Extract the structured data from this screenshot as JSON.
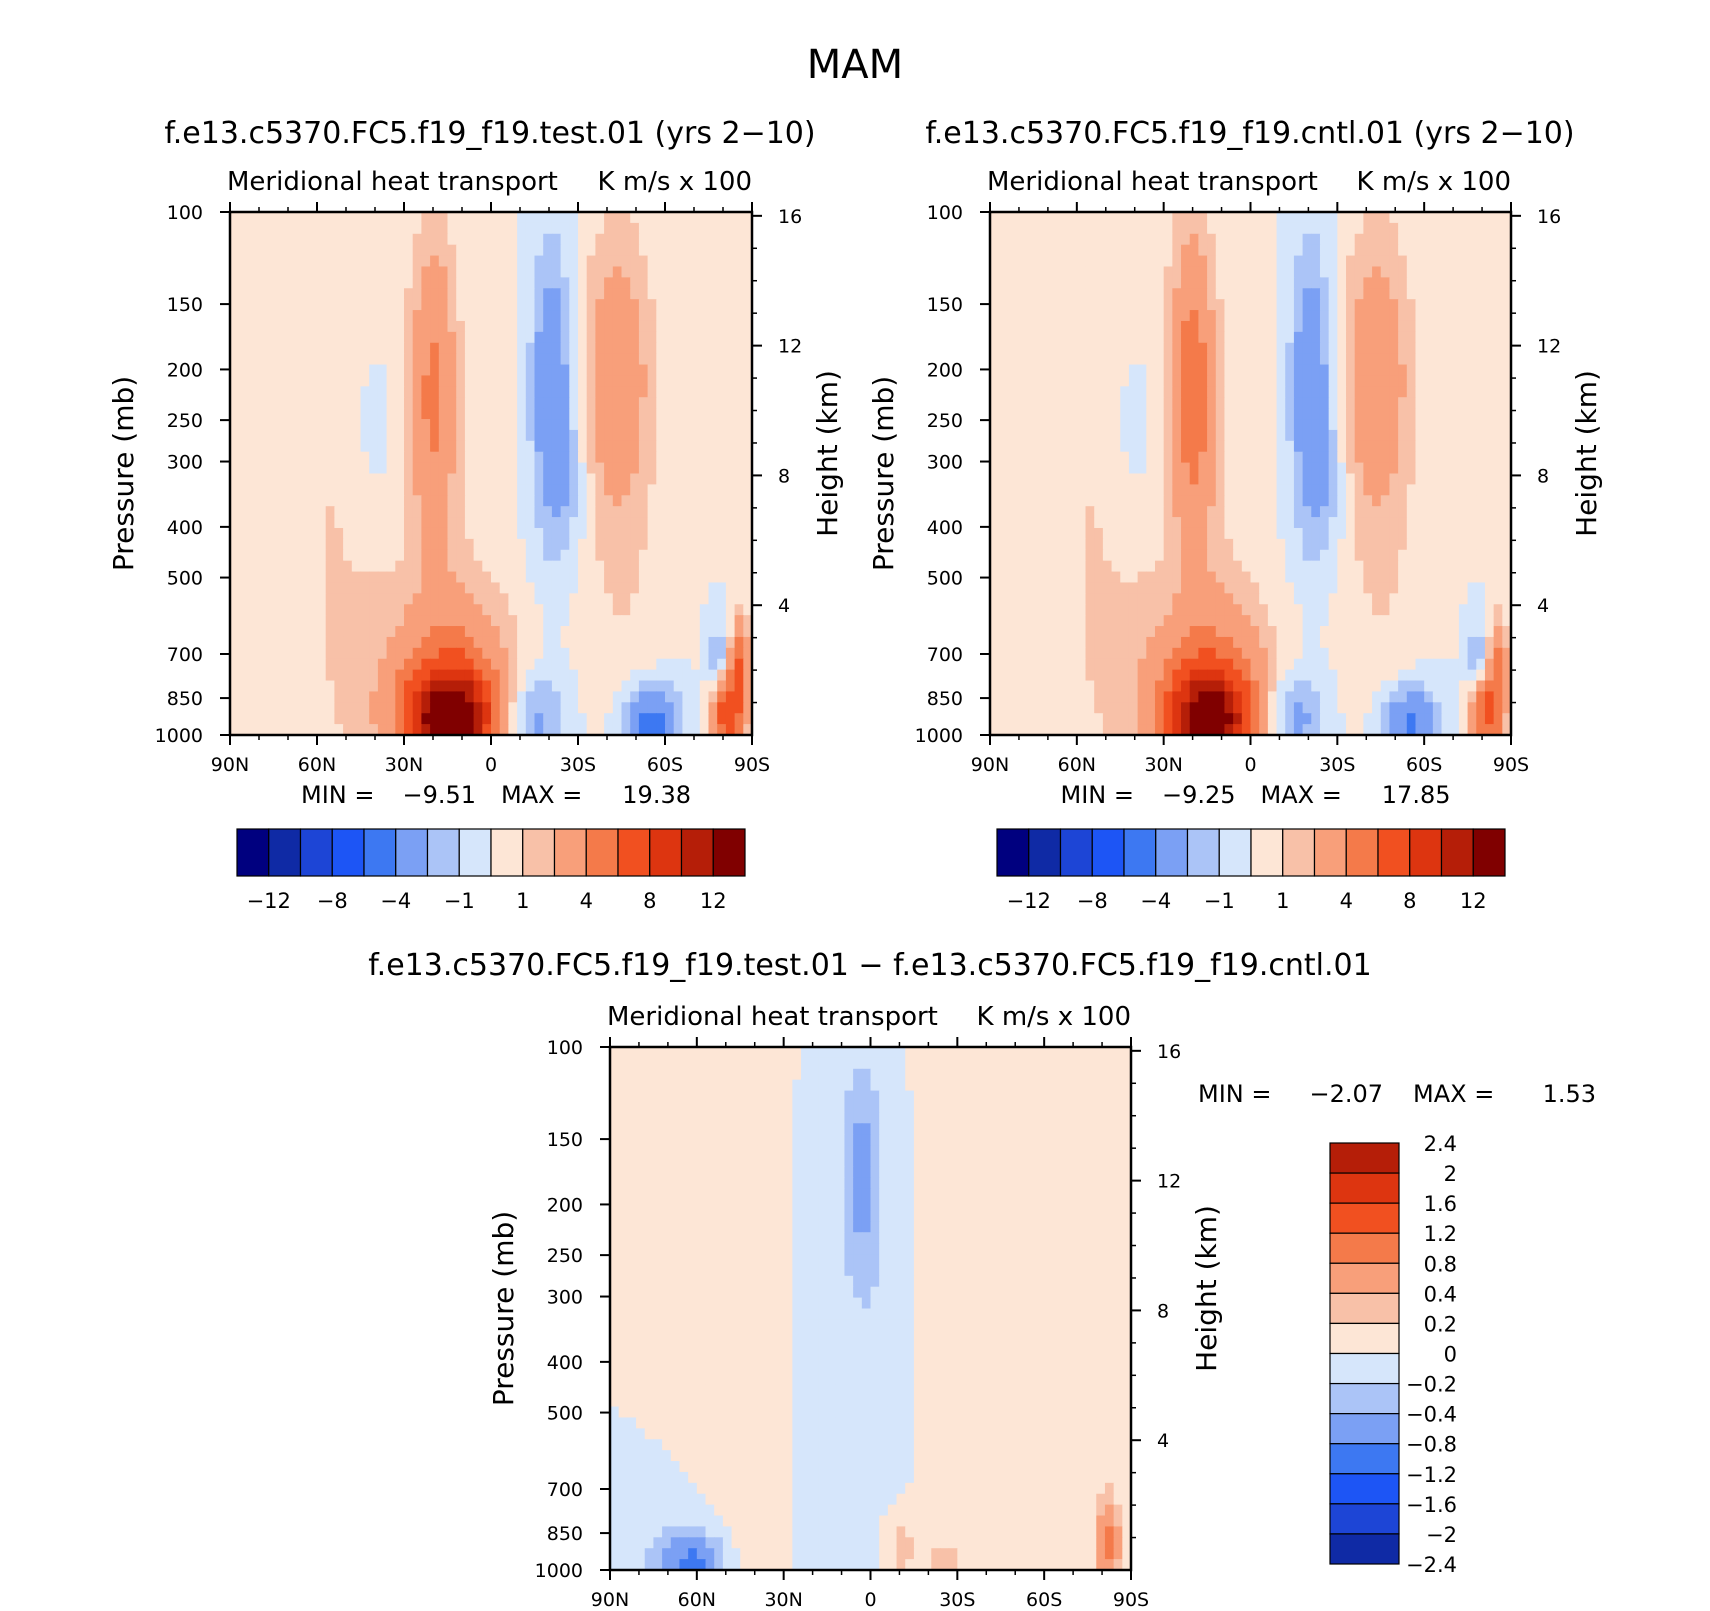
{
  "figure_title": "MAM",
  "colors": {
    "main": [
      "#00007f",
      "#0f2aa5",
      "#1d45d6",
      "#1d55f5",
      "#3d78f2",
      "#7ba0f4",
      "#abc4f7",
      "#d6e6fb",
      "#fde6d6",
      "#f8c1a8",
      "#f89f7a",
      "#f47a4a",
      "#f15020",
      "#dd3510",
      "#b51e08",
      "#800000"
    ],
    "diff": [
      "#00007f",
      "#0f2aa5",
      "#1d45d6",
      "#1d55f5",
      "#3d78f2",
      "#7ba0f4",
      "#abc4f7",
      "#d6e6fb",
      "#fde6d6",
      "#f8c1a8",
      "#f89f7a",
      "#f47a4a",
      "#f15020",
      "#dd3510",
      "#b51e08",
      "#800000"
    ]
  },
  "chart_data": [
    {
      "type": "heatmap",
      "id": "test",
      "case_title": "f.e13.c5370.FC5.f19_f19.test.01 (yrs 2−10)",
      "left_title": "Meridional heat transport",
      "right_title": "K m/s x 100",
      "ylabel": "Pressure (mb)",
      "ylabel_right": "Height (km)",
      "x_ticks": [
        "90N",
        "60N",
        "30N",
        "0",
        "30S",
        "60S",
        "90S"
      ],
      "x_values": [
        90,
        60,
        30,
        0,
        -30,
        -60,
        -90
      ],
      "y_ticks": [
        "100",
        "150",
        "200",
        "250",
        "300",
        "400",
        "500",
        "700",
        "850",
        "1000"
      ],
      "y_values": [
        100,
        150,
        200,
        250,
        300,
        400,
        500,
        700,
        850,
        1000
      ],
      "height_ticks": [
        "16",
        "12",
        "8",
        "4"
      ],
      "height_values": [
        16,
        12,
        8,
        4
      ],
      "min_label": "MIN =",
      "min": "−9.51",
      "max_label": "MAX =",
      "max": "19.38",
      "levels": [
        -14,
        -12,
        -10,
        -8,
        -6,
        -4,
        -2,
        -1,
        0,
        1,
        2,
        4,
        6,
        8,
        10,
        12,
        14
      ],
      "colorbar_labels": [
        "−12",
        "−8",
        "−4",
        "−1",
        "1",
        "4",
        "8",
        "12"
      ],
      "colorbar_label_values": [
        -12,
        -8,
        -4,
        -1,
        1,
        4,
        8,
        12
      ],
      "features": [
        {
          "lat": 14,
          "p": 950,
          "value": 12,
          "wlat": 11,
          "wp": 110
        },
        {
          "lat": 14,
          "p": 780,
          "value": 4,
          "wlat": 15,
          "wp": 170
        },
        {
          "lat": -14,
          "p": 935,
          "value": -3,
          "wlat": 8,
          "wp": 90
        },
        {
          "lat": -55,
          "p": 960,
          "value": -5,
          "wlat": 7,
          "wp": 70
        },
        {
          "lat": -43,
          "p": 200,
          "value": 2.5,
          "wlat": 8,
          "wp": 70
        },
        {
          "lat": -45,
          "p": 320,
          "value": 1.2,
          "wlat": 10,
          "wp": 260
        },
        {
          "lat": -21,
          "p": 220,
          "value": -3.5,
          "wlat": 5,
          "wp": 90
        },
        {
          "lat": -27,
          "p": 330,
          "value": -1.2,
          "wlat": 5,
          "wp": 60
        },
        {
          "lat": 20,
          "p": 220,
          "value": 4,
          "wlat": 5,
          "wp": 90
        },
        {
          "lat": 40,
          "p": 250,
          "value": -1.5,
          "wlat": 4,
          "wp": 40
        },
        {
          "lat": 55,
          "p": 400,
          "value": 1,
          "wlat": 22,
          "wp": 600
        },
        {
          "lat": 10,
          "p": 350,
          "value": 0.6,
          "wlat": 10,
          "wp": 250
        },
        {
          "lat": -82,
          "p": 900,
          "value": 8,
          "wlat": 4,
          "wp": 80
        },
        {
          "lat": -86,
          "p": 700,
          "value": 5,
          "wlat": 2,
          "wp": 50
        },
        {
          "lat": -78,
          "p": 730,
          "value": -3,
          "wlat": 2.5,
          "wp": 40
        }
      ]
    },
    {
      "type": "heatmap",
      "id": "cntl",
      "case_title": "f.e13.c5370.FC5.f19_f19.cntl.01 (yrs 2−10)",
      "left_title": "Meridional heat transport",
      "right_title": "K m/s x 100",
      "ylabel": "Pressure (mb)",
      "ylabel_right": "Height (km)",
      "x_ticks": [
        "90N",
        "60N",
        "30N",
        "0",
        "30S",
        "60S",
        "90S"
      ],
      "x_values": [
        90,
        60,
        30,
        0,
        -30,
        -60,
        -90
      ],
      "y_ticks": [
        "100",
        "150",
        "200",
        "250",
        "300",
        "400",
        "500",
        "700",
        "850",
        "1000"
      ],
      "y_values": [
        100,
        150,
        200,
        250,
        300,
        400,
        500,
        700,
        850,
        1000
      ],
      "height_ticks": [
        "16",
        "12",
        "8",
        "4"
      ],
      "height_values": [
        16,
        12,
        8,
        4
      ],
      "min_label": "MIN =",
      "min": "−9.25",
      "max_label": "MAX =",
      "max": "17.85",
      "levels": [
        -14,
        -12,
        -10,
        -8,
        -6,
        -4,
        -2,
        -1,
        0,
        1,
        2,
        4,
        6,
        8,
        10,
        12,
        14
      ],
      "colorbar_labels": [
        "−12",
        "−8",
        "−4",
        "−1",
        "1",
        "4",
        "8",
        "12"
      ],
      "colorbar_label_values": [
        -12,
        -8,
        -4,
        -1,
        1,
        4,
        8,
        12
      ],
      "features": [
        {
          "lat": 14,
          "p": 950,
          "value": 11,
          "wlat": 11,
          "wp": 110
        },
        {
          "lat": 14,
          "p": 780,
          "value": 3.8,
          "wlat": 15,
          "wp": 170
        },
        {
          "lat": -14,
          "p": 935,
          "value": -3,
          "wlat": 8,
          "wp": 90
        },
        {
          "lat": -55,
          "p": 960,
          "value": -4.5,
          "wlat": 7,
          "wp": 70
        },
        {
          "lat": -43,
          "p": 200,
          "value": 2.5,
          "wlat": 8,
          "wp": 70
        },
        {
          "lat": -45,
          "p": 320,
          "value": 1.2,
          "wlat": 10,
          "wp": 260
        },
        {
          "lat": -21,
          "p": 220,
          "value": -3.5,
          "wlat": 5,
          "wp": 90
        },
        {
          "lat": -27,
          "p": 330,
          "value": -1.2,
          "wlat": 5,
          "wp": 60
        },
        {
          "lat": 20,
          "p": 220,
          "value": 5,
          "wlat": 5,
          "wp": 90
        },
        {
          "lat": 40,
          "p": 250,
          "value": -1.5,
          "wlat": 4,
          "wp": 40
        },
        {
          "lat": 55,
          "p": 400,
          "value": 1,
          "wlat": 22,
          "wp": 600
        },
        {
          "lat": 10,
          "p": 350,
          "value": 0.6,
          "wlat": 10,
          "wp": 250
        },
        {
          "lat": -82,
          "p": 900,
          "value": 7,
          "wlat": 4,
          "wp": 80
        },
        {
          "lat": -86,
          "p": 700,
          "value": 4,
          "wlat": 2,
          "wp": 50
        },
        {
          "lat": -78,
          "p": 730,
          "value": -3,
          "wlat": 2.5,
          "wp": 40
        }
      ]
    },
    {
      "type": "heatmap",
      "id": "diff",
      "case_title": "f.e13.c5370.FC5.f19_f19.test.01 − f.e13.c5370.FC5.f19_f19.cntl.01",
      "left_title": "Meridional heat transport",
      "right_title": "K m/s x 100",
      "ylabel": "Pressure (mb)",
      "ylabel_right": "Height (km)",
      "x_ticks": [
        "90N",
        "60N",
        "30N",
        "0",
        "30S",
        "60S",
        "90S"
      ],
      "x_values": [
        90,
        60,
        30,
        0,
        -30,
        -60,
        -90
      ],
      "y_ticks": [
        "100",
        "150",
        "200",
        "250",
        "300",
        "400",
        "500",
        "700",
        "850",
        "1000"
      ],
      "y_values": [
        100,
        150,
        200,
        250,
        300,
        400,
        500,
        700,
        850,
        1000
      ],
      "height_ticks": [
        "16",
        "12",
        "8",
        "4"
      ],
      "height_values": [
        16,
        12,
        8,
        4
      ],
      "min_label": "MIN =",
      "min": "−2.07",
      "max_label": "MAX =",
      "max": "1.53",
      "levels": [
        -2.8,
        -2.4,
        -2,
        -1.6,
        -1.2,
        -0.8,
        -0.4,
        -0.2,
        0,
        0.2,
        0.4,
        0.8,
        1.2,
        1.6,
        2,
        2.4,
        2.8
      ],
      "colorbar_labels": [
        "2.4",
        "2",
        "1.6",
        "1.2",
        "0.8",
        "0.4",
        "0.2",
        "0",
        "−0.2",
        "−0.4",
        "−0.8",
        "−1.2",
        "−1.6",
        "−2",
        "−2.4"
      ],
      "colorbar_label_values": [
        2.4,
        2,
        1.6,
        1.2,
        0.8,
        0.4,
        0.2,
        0,
        -0.2,
        -0.4,
        -0.8,
        -1.2,
        -1.6,
        -2,
        -2.4
      ],
      "features": [
        {
          "lat": 60,
          "p": 975,
          "value": -0.8,
          "wlat": 6,
          "wp": 40
        },
        {
          "lat": 3,
          "p": 180,
          "value": -0.5,
          "wlat": 5,
          "wp": 60
        },
        {
          "lat": -82,
          "p": 900,
          "value": 0.9,
          "wlat": 3,
          "wp": 90
        },
        {
          "lat": -10,
          "p": 900,
          "value": 0.3,
          "wlat": 4,
          "wp": 60
        },
        {
          "lat": -25,
          "p": 980,
          "value": 0.3,
          "wlat": 5,
          "wp": 20
        },
        {
          "lat": 40,
          "p": 400,
          "value": 0.1,
          "wlat": 8,
          "wp": 500
        },
        {
          "lat": -40,
          "p": 500,
          "value": 0.1,
          "wlat": 12,
          "wp": 450
        },
        {
          "lat": 20,
          "p": 500,
          "value": -0.08,
          "wlat": 6,
          "wp": 400
        },
        {
          "lat": -5,
          "p": 600,
          "value": -0.08,
          "wlat": 5,
          "wp": 400
        },
        {
          "lat": 70,
          "p": 950,
          "value": -0.3,
          "wlat": 8,
          "wp": 60
        }
      ]
    }
  ]
}
